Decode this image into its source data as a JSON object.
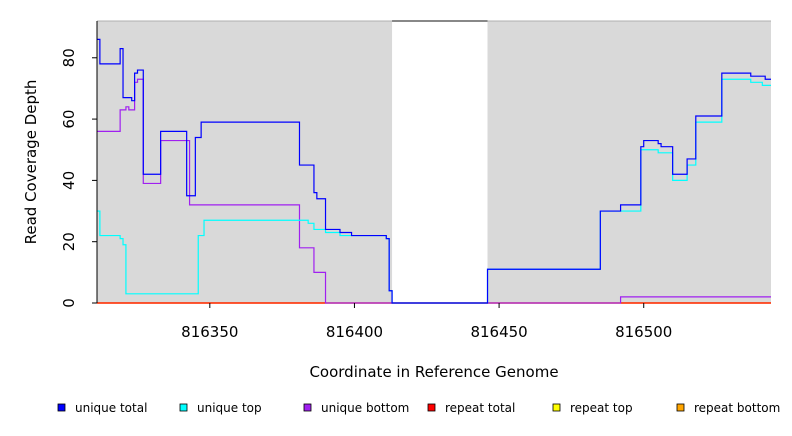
{
  "chart_data": {
    "type": "line",
    "xlabel": "Coordinate in Reference Genome",
    "ylabel": "Read Coverage Depth",
    "xlim": [
      816311,
      816544
    ],
    "ylim": [
      0,
      92
    ],
    "x_ticks": [
      816350,
      816400,
      816450,
      816500
    ],
    "y_ticks": [
      0,
      20,
      40,
      60,
      80
    ],
    "background": "#d9d9d9",
    "unshaded_region": [
      816413,
      816446
    ],
    "grid": false,
    "legend_position": "bottom",
    "series": [
      {
        "name": "unique total",
        "color": "#0000ff",
        "points": [
          [
            816311,
            86
          ],
          [
            816312,
            86
          ],
          [
            816312,
            78
          ],
          [
            816319,
            78
          ],
          [
            816319,
            83
          ],
          [
            816320,
            83
          ],
          [
            816320,
            67
          ],
          [
            816323,
            67
          ],
          [
            816323,
            66
          ],
          [
            816324,
            66
          ],
          [
            816324,
            75
          ],
          [
            816325,
            75
          ],
          [
            816325,
            76
          ],
          [
            816327,
            76
          ],
          [
            816327,
            42
          ],
          [
            816333,
            42
          ],
          [
            816333,
            56
          ],
          [
            816342,
            56
          ],
          [
            816342,
            35
          ],
          [
            816345,
            35
          ],
          [
            816345,
            54
          ],
          [
            816347,
            54
          ],
          [
            816347,
            59
          ],
          [
            816381,
            59
          ],
          [
            816381,
            45
          ],
          [
            816386,
            45
          ],
          [
            816386,
            36
          ],
          [
            816387,
            36
          ],
          [
            816387,
            34
          ],
          [
            816390,
            34
          ],
          [
            816390,
            24
          ],
          [
            816395,
            24
          ],
          [
            816395,
            23
          ],
          [
            816399,
            23
          ],
          [
            816399,
            22
          ],
          [
            816411,
            22
          ],
          [
            816411,
            21
          ],
          [
            816412,
            21
          ],
          [
            816412,
            4
          ],
          [
            816413,
            4
          ],
          [
            816413,
            0
          ],
          [
            816446,
            0
          ],
          [
            816446,
            11
          ],
          [
            816485,
            11
          ],
          [
            816485,
            30
          ],
          [
            816492,
            30
          ],
          [
            816492,
            32
          ],
          [
            816499,
            32
          ],
          [
            816499,
            51
          ],
          [
            816500,
            51
          ],
          [
            816500,
            53
          ],
          [
            816505,
            53
          ],
          [
            816505,
            52
          ],
          [
            816506,
            52
          ],
          [
            816506,
            51
          ],
          [
            816510,
            51
          ],
          [
            816510,
            42
          ],
          [
            816515,
            42
          ],
          [
            816515,
            47
          ],
          [
            816518,
            47
          ],
          [
            816518,
            61
          ],
          [
            816527,
            61
          ],
          [
            816527,
            75
          ],
          [
            816537,
            75
          ],
          [
            816537,
            74
          ],
          [
            816542,
            74
          ],
          [
            816542,
            73
          ],
          [
            816544,
            73
          ]
        ]
      },
      {
        "name": "unique top",
        "color": "#00ffff",
        "points": [
          [
            816311,
            30
          ],
          [
            816312,
            30
          ],
          [
            816312,
            22
          ],
          [
            816319,
            22
          ],
          [
            816319,
            21
          ],
          [
            816320,
            21
          ],
          [
            816320,
            19
          ],
          [
            816321,
            19
          ],
          [
            816321,
            3
          ],
          [
            816346,
            3
          ],
          [
            816346,
            22
          ],
          [
            816348,
            22
          ],
          [
            816348,
            27
          ],
          [
            816384,
            27
          ],
          [
            816384,
            26
          ],
          [
            816386,
            26
          ],
          [
            816386,
            24
          ],
          [
            816390,
            24
          ],
          [
            816390,
            23
          ],
          [
            816395,
            23
          ],
          [
            816395,
            22
          ],
          [
            816411,
            22
          ],
          [
            816411,
            21
          ],
          [
            816412,
            21
          ],
          [
            816412,
            4
          ],
          [
            816413,
            4
          ],
          [
            816413,
            0
          ],
          [
            816446,
            0
          ],
          [
            816446,
            11
          ],
          [
            816485,
            11
          ],
          [
            816485,
            30
          ],
          [
            816499,
            30
          ],
          [
            816499,
            50
          ],
          [
            816505,
            50
          ],
          [
            816505,
            49
          ],
          [
            816510,
            49
          ],
          [
            816510,
            40
          ],
          [
            816515,
            40
          ],
          [
            816515,
            45
          ],
          [
            816518,
            45
          ],
          [
            816518,
            59
          ],
          [
            816527,
            59
          ],
          [
            816527,
            73
          ],
          [
            816537,
            73
          ],
          [
            816537,
            72
          ],
          [
            816541,
            72
          ],
          [
            816541,
            71
          ],
          [
            816544,
            71
          ]
        ]
      },
      {
        "name": "unique bottom",
        "color": "#a020f0",
        "points": [
          [
            816311,
            56
          ],
          [
            816319,
            56
          ],
          [
            816319,
            63
          ],
          [
            816321,
            63
          ],
          [
            816321,
            64
          ],
          [
            816322,
            64
          ],
          [
            816322,
            63
          ],
          [
            816324,
            63
          ],
          [
            816324,
            72
          ],
          [
            816325,
            72
          ],
          [
            816325,
            73
          ],
          [
            816327,
            73
          ],
          [
            816327,
            39
          ],
          [
            816333,
            39
          ],
          [
            816333,
            53
          ],
          [
            816343,
            53
          ],
          [
            816343,
            32
          ],
          [
            816381,
            32
          ],
          [
            816381,
            18
          ],
          [
            816386,
            18
          ],
          [
            816386,
            10
          ],
          [
            816390,
            10
          ],
          [
            816390,
            0
          ],
          [
            816492,
            0
          ],
          [
            816492,
            2
          ],
          [
            816544,
            2
          ]
        ]
      },
      {
        "name": "repeat total",
        "color": "#ff0000",
        "points": [
          [
            816311,
            0
          ],
          [
            816544,
            0
          ]
        ]
      },
      {
        "name": "repeat top",
        "color": "#ffff00",
        "points": [
          [
            816311,
            0
          ],
          [
            816544,
            0
          ]
        ]
      },
      {
        "name": "repeat bottom",
        "color": "#ffa500",
        "points": [
          [
            816311,
            0
          ],
          [
            816544,
            0
          ]
        ]
      }
    ]
  }
}
